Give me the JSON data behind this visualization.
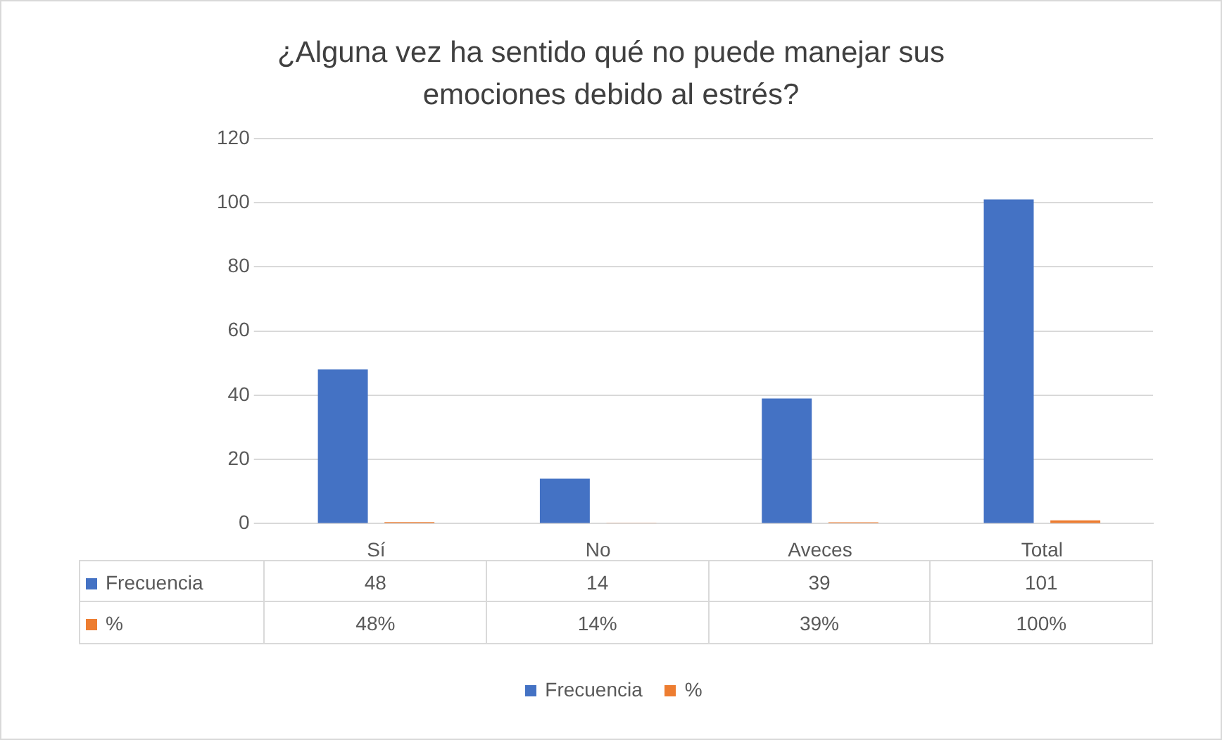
{
  "chart_data": {
    "type": "bar",
    "title": "¿Alguna vez ha sentido qué no puede manejar sus emociones debido al estrés?",
    "categories": [
      "Sí",
      "No",
      "Aveces",
      "Total"
    ],
    "series": [
      {
        "name": "Frecuencia",
        "color": "#4472c4",
        "values": [
          48,
          14,
          39,
          101
        ],
        "value_labels": [
          "48",
          "14",
          "39",
          "101"
        ]
      },
      {
        "name": "%",
        "color": "#ed7d31",
        "values": [
          0.48,
          0.14,
          0.39,
          1
        ],
        "value_labels": [
          "48%",
          "14%",
          "39%",
          "100%"
        ]
      }
    ],
    "ylim": [
      0,
      120
    ],
    "yticks": [
      0,
      20,
      40,
      60,
      80,
      100,
      120
    ],
    "grid": "y",
    "legend": "bottom"
  }
}
